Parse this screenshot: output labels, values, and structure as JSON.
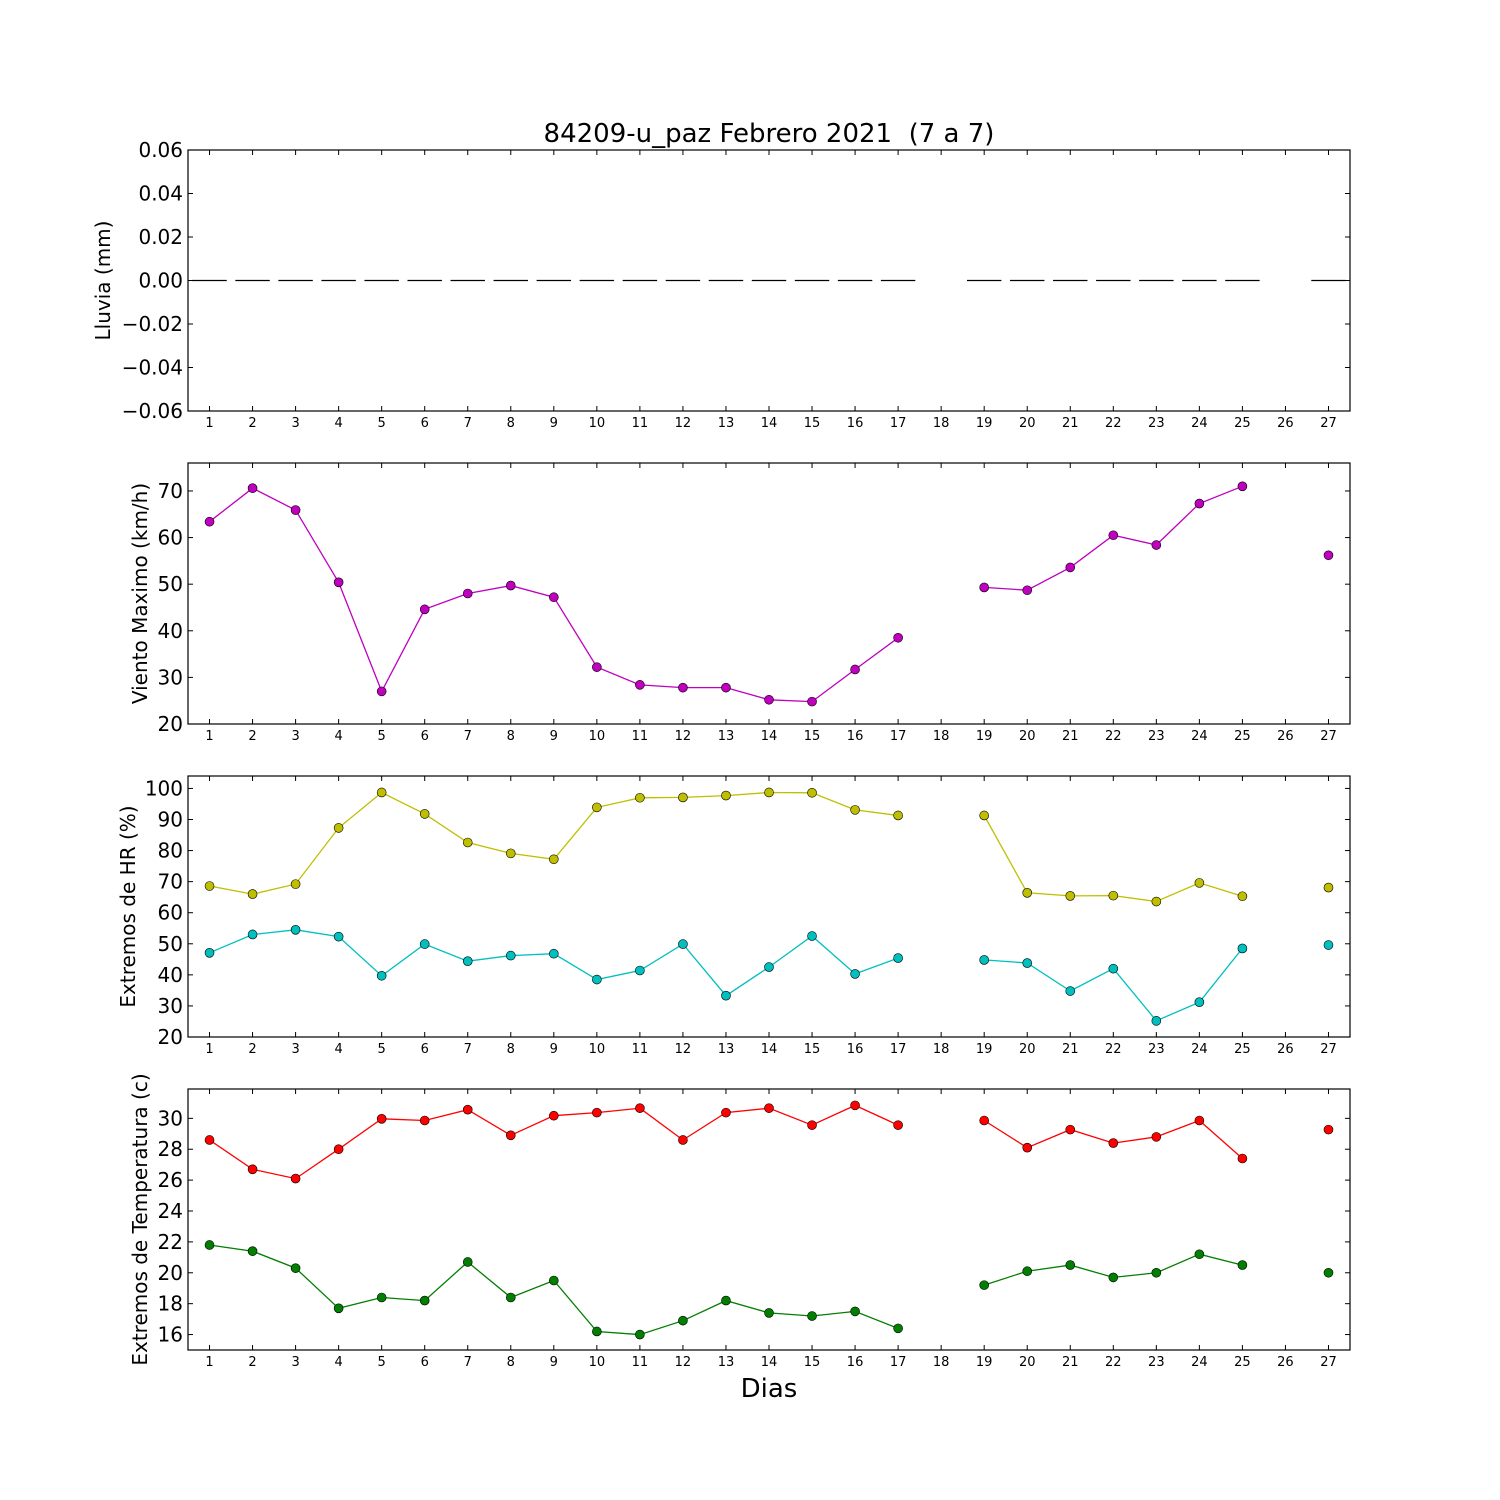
{
  "figure": {
    "title": "84209-u_paz Febrero 2021  (7 a 7)",
    "xlabel": "Dias"
  },
  "chart_data": [
    {
      "type": "bar",
      "id": "lluvia",
      "ylabel": "Lluvia (mm)",
      "ylim": [
        -0.06,
        0.06
      ],
      "yticks": [
        "0.06",
        "0.04",
        "0.02",
        "0.00",
        "−0.02",
        "−0.04",
        "−0.06"
      ],
      "ytick_values": [
        0.06,
        0.04,
        0.02,
        0.0,
        -0.02,
        -0.04,
        -0.06
      ],
      "x": [
        1,
        2,
        3,
        4,
        5,
        6,
        7,
        8,
        9,
        10,
        11,
        12,
        13,
        14,
        15,
        16,
        17,
        18,
        19,
        20,
        21,
        22,
        23,
        24,
        25,
        26,
        27
      ],
      "series": [
        {
          "color": "#000000",
          "values": [
            0,
            0,
            0,
            0,
            0,
            0,
            0,
            0,
            0,
            0,
            0,
            0,
            0,
            0,
            0,
            0,
            0,
            null,
            0,
            0,
            0,
            0,
            0,
            0,
            0,
            null,
            0
          ]
        }
      ]
    },
    {
      "type": "line",
      "id": "viento",
      "ylabel": "Viento Maximo (km/h)",
      "ylim": [
        20,
        76
      ],
      "yticks": [
        "20",
        "30",
        "40",
        "50",
        "60",
        "70"
      ],
      "ytick_values": [
        20,
        30,
        40,
        50,
        60,
        70
      ],
      "x": [
        1,
        2,
        3,
        4,
        5,
        6,
        7,
        8,
        9,
        10,
        11,
        12,
        13,
        14,
        15,
        16,
        17,
        18,
        19,
        20,
        21,
        22,
        23,
        24,
        25,
        26,
        27
      ],
      "series": [
        {
          "color": "#bf00bf",
          "values": [
            63.4,
            70.6,
            65.9,
            50.4,
            27.0,
            44.6,
            48.0,
            49.7,
            47.2,
            32.2,
            28.4,
            27.8,
            27.8,
            25.2,
            24.8,
            31.7,
            38.5,
            null,
            49.3,
            48.7,
            53.6,
            60.5,
            58.4,
            67.3,
            71.0,
            null,
            56.2
          ]
        }
      ]
    },
    {
      "type": "line",
      "id": "hr",
      "ylabel": "Extremos de HR (%)",
      "ylim": [
        20,
        104
      ],
      "yticks": [
        "20",
        "30",
        "40",
        "50",
        "60",
        "70",
        "80",
        "90",
        "100"
      ],
      "ytick_values": [
        20,
        30,
        40,
        50,
        60,
        70,
        80,
        90,
        100
      ],
      "x": [
        1,
        2,
        3,
        4,
        5,
        6,
        7,
        8,
        9,
        10,
        11,
        12,
        13,
        14,
        15,
        16,
        17,
        18,
        19,
        20,
        21,
        22,
        23,
        24,
        25,
        26,
        27
      ],
      "series": [
        {
          "color": "#bfbf00",
          "values": [
            68.6,
            66.0,
            69.2,
            87.3,
            98.7,
            91.8,
            82.6,
            79.1,
            77.2,
            93.9,
            97.0,
            97.1,
            97.7,
            98.7,
            98.6,
            93.1,
            91.3,
            null,
            91.3,
            66.4,
            65.4,
            65.5,
            63.6,
            69.6,
            65.3,
            null,
            68.1
          ]
        },
        {
          "color": "#00bfbf",
          "values": [
            47.1,
            53.0,
            54.5,
            52.3,
            39.7,
            49.9,
            44.4,
            46.2,
            46.8,
            38.5,
            41.4,
            49.9,
            33.3,
            42.5,
            52.5,
            40.3,
            45.4,
            null,
            44.8,
            43.8,
            34.8,
            42.0,
            25.2,
            31.2,
            48.5,
            null,
            49.6
          ]
        }
      ]
    },
    {
      "type": "line",
      "id": "temp",
      "ylabel": "Extremos de Temperatura (c)",
      "ylim": [
        15,
        31.9
      ],
      "yticks": [
        "16",
        "18",
        "20",
        "22",
        "24",
        "26",
        "28",
        "30"
      ],
      "ytick_values": [
        16,
        18,
        20,
        22,
        24,
        26,
        28,
        30
      ],
      "x": [
        1,
        2,
        3,
        4,
        5,
        6,
        7,
        8,
        9,
        10,
        11,
        12,
        13,
        14,
        15,
        16,
        17,
        18,
        19,
        20,
        21,
        22,
        23,
        24,
        25,
        26,
        27
      ],
      "series": [
        {
          "color": "#ff0000",
          "values": [
            28.6,
            26.7,
            26.1,
            28.0,
            29.97,
            29.86,
            30.56,
            28.9,
            30.17,
            30.37,
            30.66,
            28.6,
            30.37,
            30.66,
            29.56,
            30.84,
            29.56,
            null,
            29.86,
            28.1,
            29.27,
            28.4,
            28.8,
            29.86,
            27.4,
            null,
            29.27
          ]
        },
        {
          "color": "#007f00",
          "values": [
            21.8,
            21.4,
            20.3,
            17.7,
            18.4,
            18.2,
            20.7,
            18.4,
            19.5,
            16.2,
            16.0,
            16.9,
            18.2,
            17.4,
            17.2,
            17.5,
            16.4,
            null,
            19.2,
            20.1,
            20.5,
            19.7,
            20.0,
            21.2,
            20.5,
            null,
            20.0
          ]
        }
      ]
    }
  ]
}
